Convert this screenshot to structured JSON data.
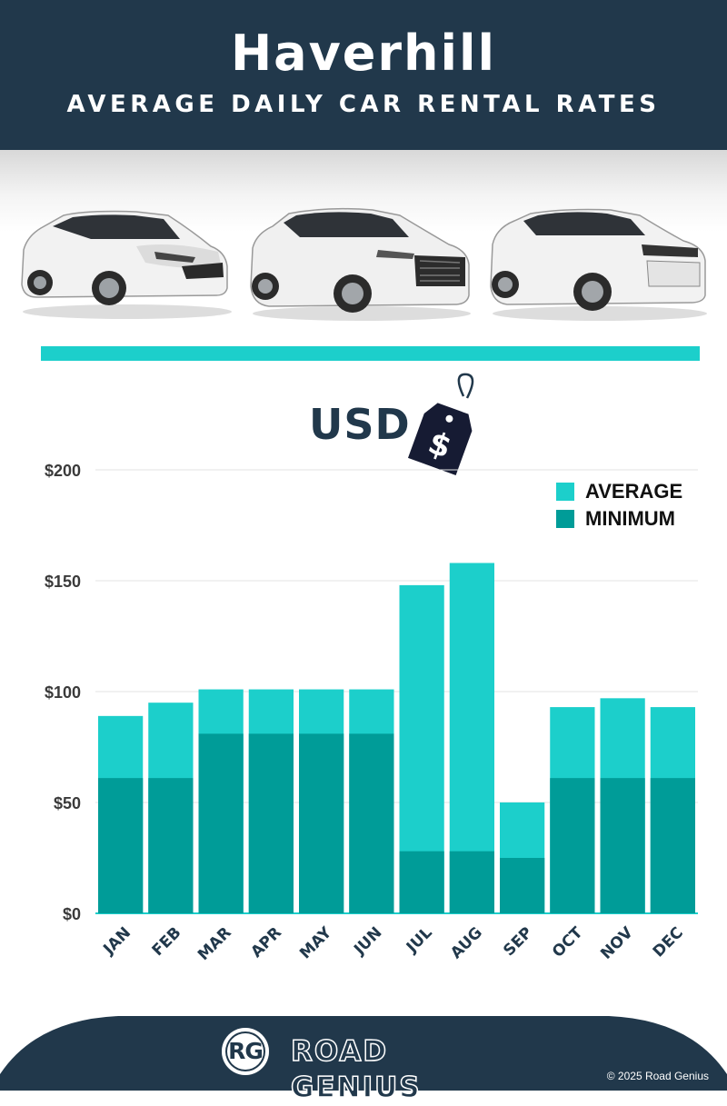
{
  "header": {
    "title": "Haverhill",
    "subtitle": "AVERAGE DAILY CAR RENTAL RATES"
  },
  "currency": {
    "label": "USD",
    "tag_symbol": "$"
  },
  "legend": {
    "average": "AVERAGE",
    "minimum": "MINIMUM"
  },
  "colors": {
    "navy": "#21384b",
    "average": "#1ccfcb",
    "minimum": "#009c98",
    "rule": "#1ccfcb"
  },
  "chart_data": {
    "type": "bar",
    "stacked_overlay": true,
    "categories": [
      "JAN",
      "FEB",
      "MAR",
      "APR",
      "MAY",
      "JUN",
      "JUL",
      "AUG",
      "SEP",
      "OCT",
      "NOV",
      "DEC"
    ],
    "series": [
      {
        "name": "AVERAGE",
        "values": [
          89,
          95,
          101,
          101,
          101,
          101,
          148,
          158,
          50,
          93,
          97,
          93
        ]
      },
      {
        "name": "MINIMUM",
        "values": [
          61,
          61,
          81,
          81,
          81,
          81,
          28,
          28,
          25,
          61,
          61,
          61
        ]
      }
    ],
    "y_ticks": [
      "$0",
      "$50",
      "$100",
      "$150",
      "$200"
    ],
    "y_tick_values": [
      0,
      50,
      100,
      150,
      200
    ],
    "ylim": [
      0,
      200
    ],
    "grid": true,
    "legend_position": "top-right"
  },
  "footer": {
    "brand_initials": "RG",
    "brand_name": "ROAD GENIUS",
    "copyright": "© 2025 Road Genius"
  }
}
